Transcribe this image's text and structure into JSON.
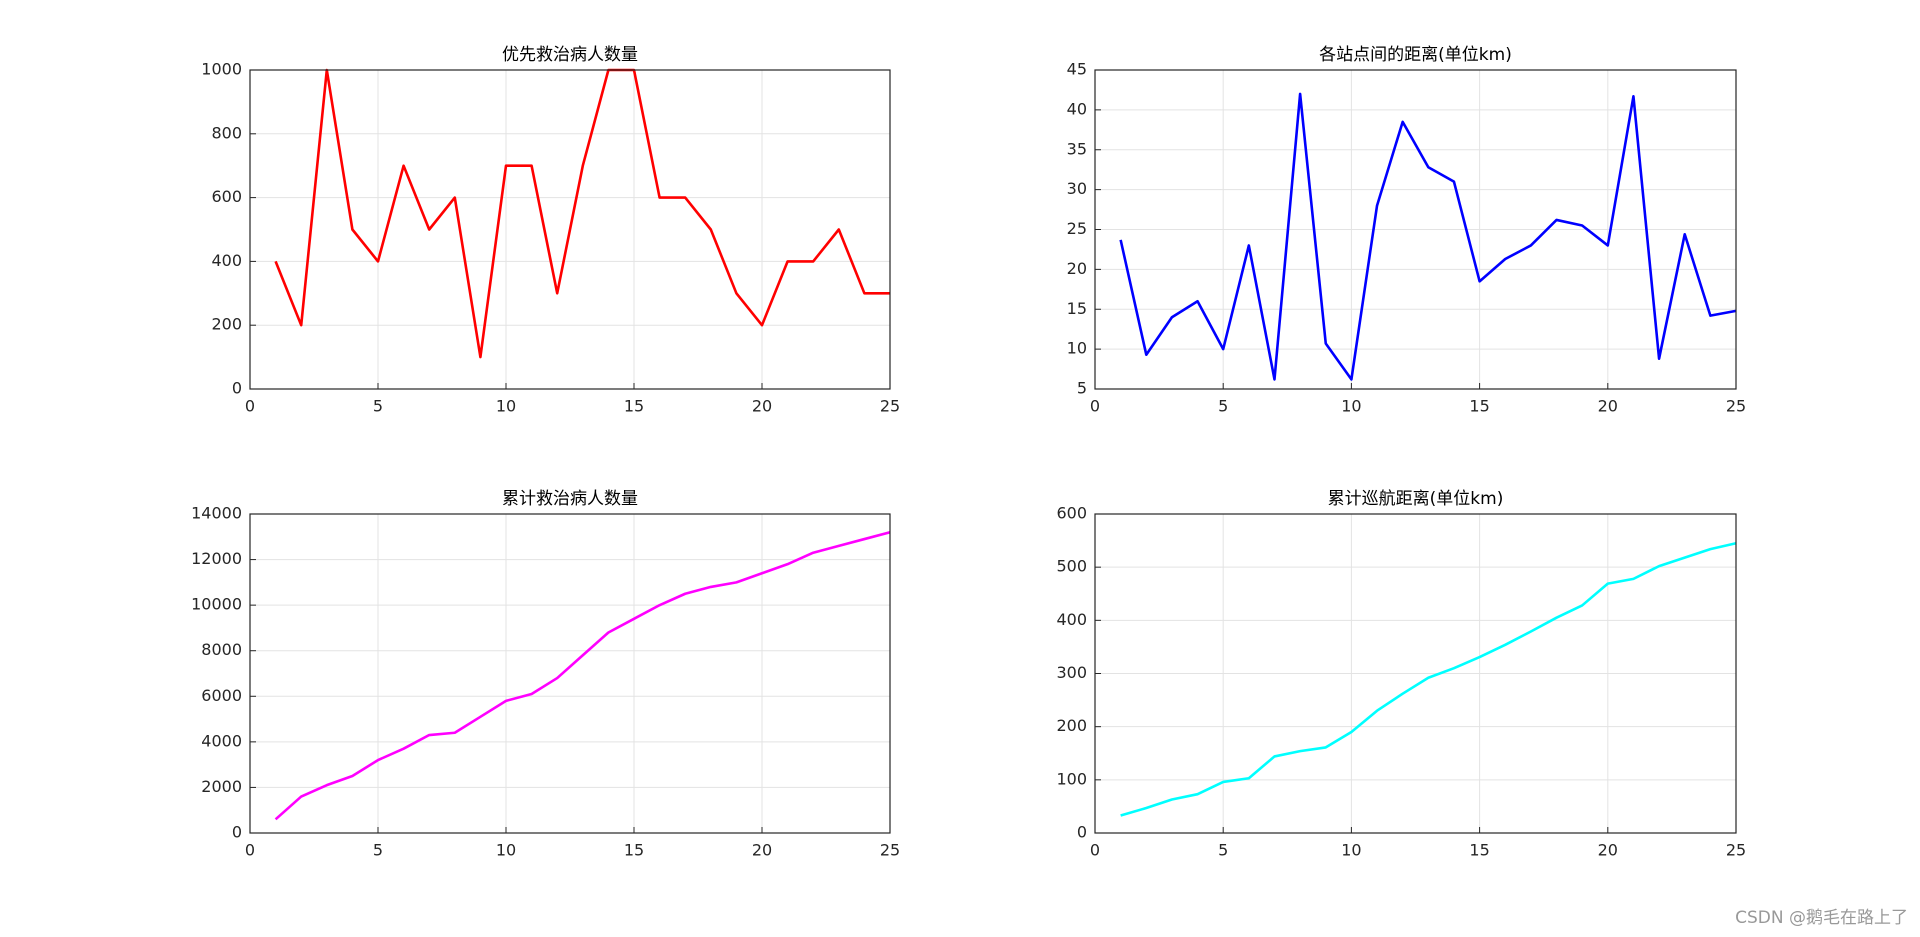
{
  "chart_data": [
    {
      "type": "line",
      "title": "优先救治病人数量",
      "x": [
        1,
        2,
        3,
        4,
        5,
        6,
        7,
        8,
        9,
        10,
        11,
        12,
        13,
        14,
        15,
        16,
        17,
        18,
        19,
        20,
        21,
        22,
        23,
        24,
        25
      ],
      "values": [
        400,
        200,
        1000,
        500,
        400,
        700,
        500,
        600,
        100,
        700,
        700,
        300,
        700,
        1000,
        1000,
        600,
        600,
        500,
        300,
        200,
        400,
        400,
        500,
        300,
        300
      ],
      "color": "#ff0000",
      "xlim": [
        0,
        25
      ],
      "xticks": [
        0,
        5,
        10,
        15,
        20,
        25
      ],
      "ylim": [
        0,
        1000
      ],
      "yticks": [
        0,
        200,
        400,
        600,
        800,
        1000
      ],
      "grid": true
    },
    {
      "type": "line",
      "title": "各站点间的距离(单位km)",
      "x": [
        1,
        2,
        3,
        4,
        5,
        6,
        7,
        8,
        9,
        10,
        11,
        12,
        13,
        14,
        15,
        16,
        17,
        18,
        19,
        20,
        21,
        22,
        23,
        24,
        25
      ],
      "values": [
        23.7,
        9.3,
        14,
        16,
        10,
        23,
        6.2,
        42,
        10.7,
        6.2,
        28,
        38.5,
        32.8,
        31,
        18.5,
        21.3,
        23,
        26.2,
        25.5,
        23,
        41.7,
        8.8,
        24.4,
        14.2,
        14.8
      ],
      "color": "#0000ff",
      "xlim": [
        0,
        25
      ],
      "xticks": [
        0,
        5,
        10,
        15,
        20,
        25
      ],
      "ylim": [
        5,
        45
      ],
      "yticks": [
        5,
        10,
        15,
        20,
        25,
        30,
        35,
        40,
        45
      ],
      "grid": true
    },
    {
      "type": "line",
      "title": "累计救治病人数量",
      "x": [
        1,
        2,
        3,
        4,
        5,
        6,
        7,
        8,
        9,
        10,
        11,
        12,
        13,
        14,
        15,
        16,
        17,
        18,
        19,
        20,
        21,
        22,
        23,
        24,
        25
      ],
      "values": [
        600,
        1600,
        2100,
        2500,
        3200,
        3700,
        4300,
        4400,
        5100,
        5800,
        6100,
        6800,
        7800,
        8800,
        9400,
        10000,
        10500,
        10800,
        11000,
        11400,
        11800,
        12300,
        12600,
        12900,
        13200
      ],
      "color": "#ff00ff",
      "xlim": [
        0,
        25
      ],
      "xticks": [
        0,
        5,
        10,
        15,
        20,
        25
      ],
      "ylim": [
        0,
        14000
      ],
      "yticks": [
        0,
        2000,
        4000,
        6000,
        8000,
        10000,
        12000,
        14000
      ],
      "grid": true
    },
    {
      "type": "line",
      "title": "累计巡航距离(单位km)",
      "x": [
        1,
        2,
        3,
        4,
        5,
        6,
        7,
        8,
        9,
        10,
        11,
        12,
        13,
        14,
        15,
        16,
        17,
        18,
        19,
        20,
        21,
        22,
        23,
        24,
        25
      ],
      "values": [
        33,
        47,
        63,
        73,
        96,
        103,
        144,
        154,
        161,
        190,
        230,
        262,
        292,
        310,
        331,
        354,
        379,
        405,
        428,
        469,
        478,
        502,
        518,
        534,
        545
      ],
      "color": "#00ffff",
      "xlim": [
        0,
        25
      ],
      "xticks": [
        0,
        5,
        10,
        15,
        20,
        25
      ],
      "ylim": [
        0,
        600
      ],
      "yticks": [
        0,
        100,
        200,
        300,
        400,
        500,
        600
      ],
      "grid": true
    }
  ],
  "watermark": "CSDN @鹅毛在路上了"
}
